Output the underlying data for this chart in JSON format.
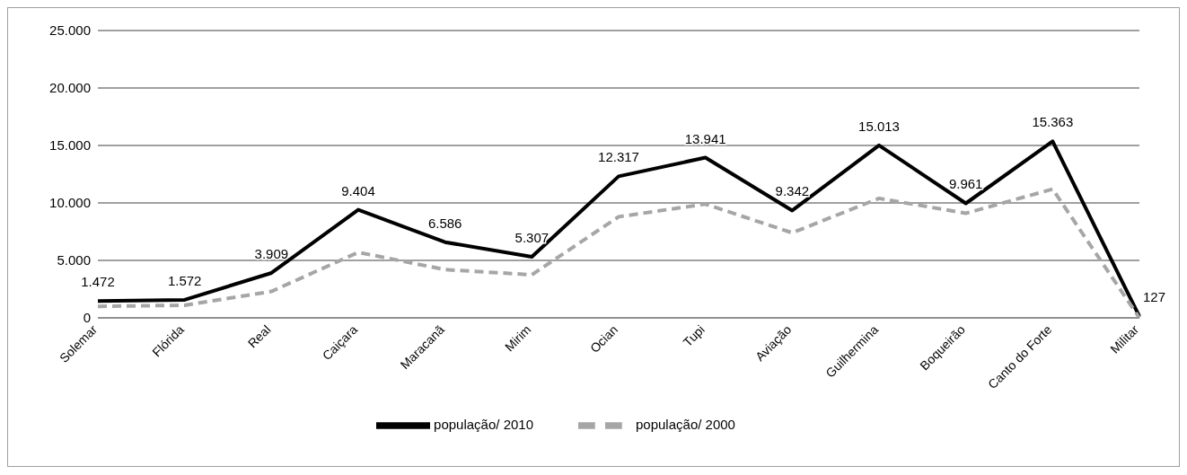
{
  "chart_data": {
    "type": "line",
    "categories": [
      "Solemar",
      "Flórida",
      "Real",
      "Caiçara",
      "Maracanã",
      "Mirim",
      "Ocian",
      "Tupi",
      "Aviação",
      "Guilhermina",
      "Boqueirão",
      "Canto do Forte",
      "Militar"
    ],
    "series": [
      {
        "name": "população/ 2010",
        "color": "#000000",
        "line_style": "solid",
        "values": [
          1472,
          1572,
          3909,
          9404,
          6586,
          5307,
          12317,
          13941,
          9342,
          15013,
          9961,
          15363,
          127
        ],
        "value_labels": [
          "1.472",
          "1.572",
          "3.909",
          "9.404",
          "6.586",
          "5.307",
          "12.317",
          "13.941",
          "9.342",
          "15.013",
          "9.961",
          "15.363",
          "127"
        ]
      },
      {
        "name": "população/ 2000",
        "color": "#a6a6a6",
        "line_style": "dashed",
        "values": [
          1000,
          1100,
          2300,
          5700,
          4200,
          3750,
          8800,
          9900,
          7400,
          10400,
          9100,
          11200,
          0
        ]
      }
    ],
    "ylim": [
      0,
      25000
    ],
    "yticks": [
      {
        "value": 0,
        "label": "0"
      },
      {
        "value": 5000,
        "label": "5.000"
      },
      {
        "value": 10000,
        "label": "10.000"
      },
      {
        "value": 15000,
        "label": "15.000"
      },
      {
        "value": 20000,
        "label": "20.000"
      },
      {
        "value": 25000,
        "label": "25.000"
      }
    ],
    "grid": "y",
    "legend": "bottom",
    "marker": "none"
  }
}
